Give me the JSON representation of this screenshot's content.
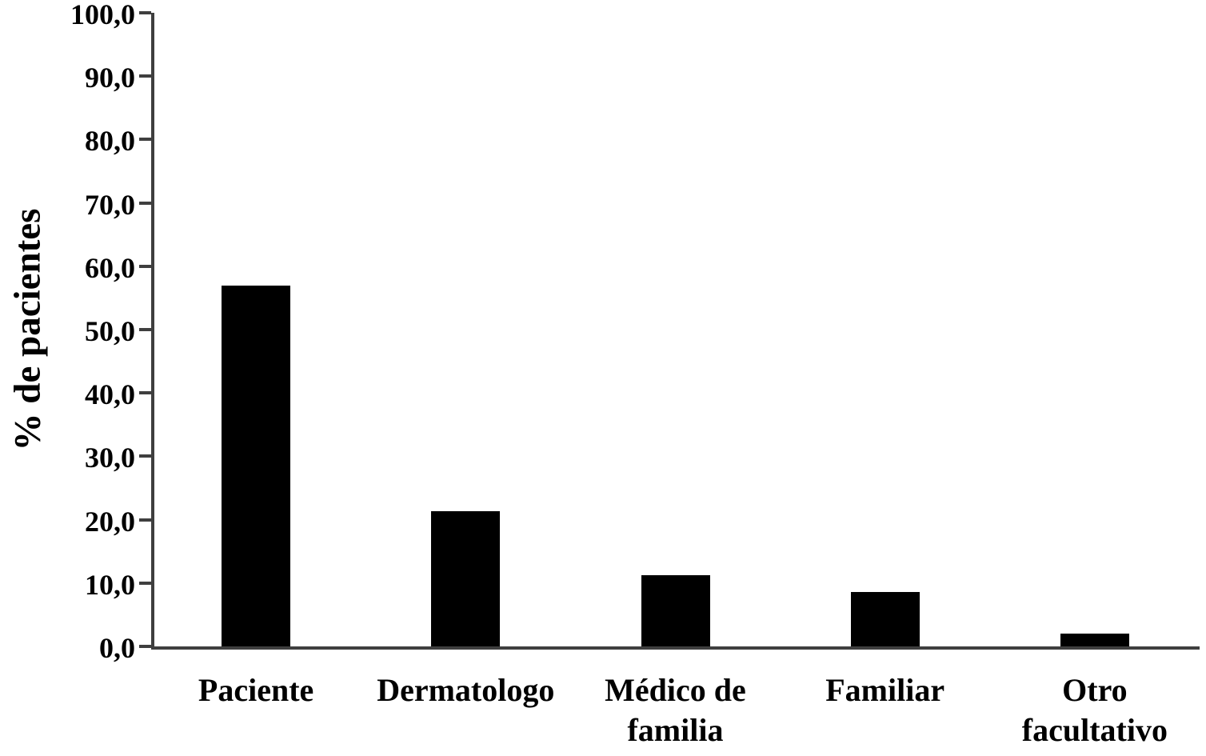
{
  "chart_data": {
    "type": "bar",
    "title": "",
    "ylabel": "% de pacientes",
    "xlabel": "",
    "categories": [
      "Paciente",
      "Dermatologo",
      "Médico de familia",
      "Familiar",
      "Otro facultativo"
    ],
    "values": [
      57.0,
      21.3,
      11.3,
      8.6,
      2.0
    ],
    "ylim": [
      0,
      100
    ],
    "ytick_step": 10,
    "ytick_labels": [
      "0,0",
      "10,0",
      "20,0",
      "30,0",
      "40,0",
      "50,0",
      "60,0",
      "70,0",
      "80,0",
      "90,0",
      "100,0"
    ],
    "grid": false,
    "legend_position": "none",
    "bar_color": "#000000",
    "axis_color": "#3f3f3f",
    "text_color": "#000000",
    "background_color": "#ffffff"
  }
}
